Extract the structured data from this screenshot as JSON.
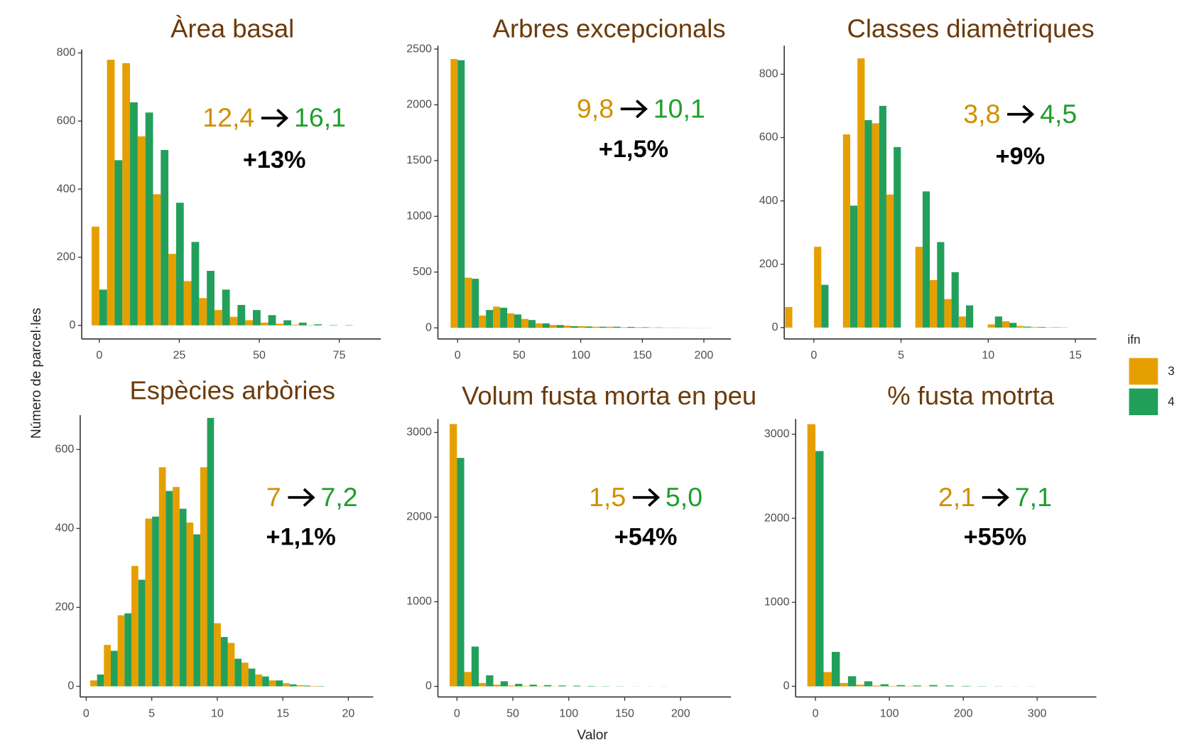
{
  "y_label": "Número de parcel·les",
  "x_label": "Valor",
  "legend": {
    "title": "ifn",
    "series": [
      {
        "name": "3",
        "color": "#E69F00"
      },
      {
        "name": "4",
        "color": "#22A05B"
      }
    ]
  },
  "chart_data": [
    {
      "type": "histogram",
      "title": "Àrea basal",
      "annotation": {
        "from": "12,4",
        "to": "16,1",
        "change": "+13%"
      },
      "bins": [
        -2.4,
        2.4,
        7.2,
        12,
        16.8,
        21.6,
        26.4,
        31.2,
        36,
        40.8,
        45.6,
        50.4,
        55.2,
        60,
        64.8,
        69.6,
        74.4,
        79.2,
        84
      ],
      "series": [
        {
          "values": [
            290,
            780,
            770,
            555,
            385,
            210,
            130,
            80,
            45,
            25,
            15,
            8,
            5,
            2,
            1,
            0,
            0,
            0
          ]
        },
        {
          "values": [
            105,
            485,
            655,
            625,
            515,
            360,
            245,
            160,
            105,
            60,
            45,
            30,
            15,
            8,
            3,
            1,
            1,
            0
          ]
        }
      ],
      "xlim": [
        -5.5,
        88
      ],
      "ylim": [
        -40,
        810
      ],
      "xticks": [
        0,
        25,
        50,
        75
      ],
      "yticks": [
        0,
        200,
        400,
        600,
        800
      ]
    },
    {
      "type": "histogram",
      "title": "Arbres excepcionals",
      "annotation": {
        "from": "9,8",
        "to": "10,1",
        "change": "+1,5%"
      },
      "bins": [
        -5.75,
        5.75,
        17.25,
        28.75,
        40.25,
        51.75,
        63.25,
        74.75,
        86.25,
        97.75,
        109.25,
        120.75,
        132.25,
        143.75,
        155.25,
        166.75,
        178.25,
        189.75,
        201.25,
        212.75
      ],
      "series": [
        {
          "values": [
            2410,
            450,
            110,
            190,
            130,
            80,
            40,
            25,
            20,
            15,
            10,
            10,
            5,
            5,
            3,
            2,
            2,
            1,
            1
          ]
        },
        {
          "values": [
            2400,
            440,
            160,
            180,
            120,
            70,
            40,
            25,
            15,
            12,
            10,
            10,
            8,
            5,
            3,
            2,
            1,
            1,
            0
          ]
        }
      ],
      "xlim": [
        -16,
        222
      ],
      "ylim": [
        -100,
        2530
      ],
      "xticks": [
        0,
        50,
        100,
        150,
        200
      ],
      "yticks": [
        0,
        500,
        1000,
        1500,
        2000,
        2500
      ]
    },
    {
      "type": "histogram",
      "title": "Classes diamètriques",
      "annotation": {
        "from": "3,8",
        "to": "4,5",
        "change": "+9%"
      },
      "bins": [
        -1.65,
        -0.82,
        0.01,
        0.84,
        1.67,
        2.5,
        3.33,
        4.16,
        4.99,
        5.82,
        6.65,
        7.48,
        8.31,
        9.14,
        9.97,
        10.8,
        11.63,
        12.46,
        13.29,
        14.12,
        14.95,
        15.78
      ],
      "series": [
        {
          "values": [
            65,
            0,
            255,
            0,
            610,
            850,
            645,
            420,
            0,
            255,
            150,
            90,
            35,
            0,
            10,
            20,
            5,
            2,
            1,
            1,
            0
          ]
        },
        {
          "values": [
            0,
            0,
            135,
            0,
            385,
            655,
            700,
            570,
            0,
            430,
            270,
            175,
            70,
            0,
            35,
            15,
            3,
            2,
            1,
            0,
            0
          ]
        }
      ],
      "xlim": [
        -1.7,
        16.2
      ],
      "ylim": [
        -36,
        890
      ],
      "xticks": [
        0,
        5,
        10,
        15
      ],
      "yticks": [
        0,
        200,
        400,
        600,
        800
      ]
    },
    {
      "type": "histogram",
      "title": "Espècies arbòries",
      "annotation": {
        "from": "7",
        "to": "7,2",
        "change": "+1,1%"
      },
      "bins": [
        0.3,
        1.35,
        2.4,
        3.45,
        4.5,
        5.55,
        6.6,
        7.65,
        8.7,
        9.75,
        10.8,
        11.85,
        12.9,
        13.95,
        15,
        16.05,
        17.1,
        18.15,
        19.2,
        20.25,
        21.3
      ],
      "series": [
        {
          "values": [
            15,
            105,
            180,
            305,
            425,
            555,
            505,
            415,
            555,
            160,
            110,
            60,
            30,
            15,
            8,
            3,
            1,
            0,
            0,
            0
          ]
        },
        {
          "values": [
            30,
            90,
            185,
            270,
            430,
            495,
            450,
            385,
            680,
            125,
            70,
            45,
            25,
            15,
            5,
            2,
            1,
            0,
            0,
            0
          ]
        }
      ],
      "xlim": [
        -0.46,
        21.9
      ],
      "ylim": [
        -27,
        687
      ],
      "xticks": [
        0,
        5,
        10,
        15,
        20
      ],
      "yticks": [
        0,
        200,
        400,
        600
      ]
    },
    {
      "type": "histogram",
      "title": "Volum fusta morta en peu",
      "annotation": {
        "from": "1,5",
        "to": "5,0",
        "change": "+54%"
      },
      "bins": [
        -6.5,
        6.5,
        19.5,
        32.5,
        45.5,
        58.5,
        71.5,
        84.5,
        97.5,
        110.5,
        123.5,
        136.5,
        149.5,
        162.5,
        175.5,
        188.5,
        201.5,
        214.5,
        227.5,
        240.5
      ],
      "series": [
        {
          "values": [
            3100,
            170,
            40,
            20,
            10,
            5,
            3,
            2,
            1,
            1,
            1,
            0,
            0,
            0,
            0,
            0,
            0,
            0,
            0
          ]
        },
        {
          "values": [
            2700,
            470,
            130,
            60,
            30,
            20,
            15,
            10,
            8,
            5,
            3,
            2,
            1,
            1,
            1,
            0,
            0,
            0,
            0
          ]
        }
      ],
      "xlim": [
        -17,
        245
      ],
      "ylim": [
        -126,
        3160
      ],
      "xticks": [
        0,
        50,
        100,
        150,
        200
      ],
      "yticks": [
        0,
        1000,
        2000,
        3000
      ]
    },
    {
      "type": "histogram",
      "title": "% fusta motrta",
      "annotation": {
        "from": "2,1",
        "to": "7,1",
        "change": "+55%"
      },
      "bins": [
        -11,
        11,
        33,
        55,
        77,
        99,
        121,
        143,
        165,
        187,
        209,
        231,
        253,
        275,
        297,
        319,
        341,
        363
      ],
      "series": [
        {
          "values": [
            3120,
            170,
            40,
            20,
            10,
            5,
            3,
            2,
            1,
            1,
            1,
            0,
            0,
            0,
            0,
            0,
            0
          ]
        },
        {
          "values": [
            2800,
            410,
            120,
            60,
            25,
            15,
            10,
            15,
            10,
            5,
            3,
            2,
            1,
            1,
            0,
            0,
            0
          ]
        }
      ],
      "xlim": [
        -26.8,
        380
      ],
      "ylim": [
        -127,
        3182
      ],
      "xticks": [
        0,
        100,
        200,
        300
      ],
      "yticks": [
        0,
        1000,
        2000,
        3000
      ]
    }
  ]
}
